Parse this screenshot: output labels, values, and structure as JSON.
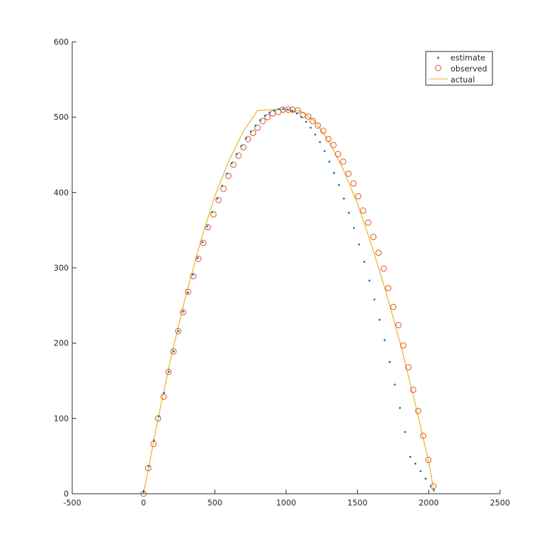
{
  "chart_data": {
    "type": "scatter",
    "title": "",
    "xlabel": "",
    "ylabel": "",
    "xlim": [
      -500,
      2500
    ],
    "ylim": [
      0,
      600
    ],
    "x_ticks": [
      -500,
      0,
      500,
      1000,
      1500,
      2000,
      2500
    ],
    "y_ticks": [
      0,
      100,
      200,
      300,
      400,
      500,
      600
    ],
    "x_tick_labels": [
      "-500",
      "0",
      "500",
      "1000",
      "1500",
      "2000",
      "2500"
    ],
    "y_tick_labels": [
      "0",
      "100",
      "200",
      "300",
      "400",
      "500",
      "600"
    ],
    "grid": false,
    "legend_position": "top-right",
    "colors": {
      "estimate": "#0072bd",
      "observed": "#d95319",
      "actual": "#edb120"
    },
    "series": [
      {
        "name": "estimate",
        "kind": "marker-dot",
        "x": [
          0,
          37,
          73,
          108,
          143,
          177,
          211,
          245,
          278,
          312,
          346,
          380,
          414,
          448,
          482,
          517,
          551,
          585,
          619,
          653,
          687,
          720,
          753,
          786,
          819,
          852,
          884,
          916,
          948,
          980,
          1012,
          1044,
          1076,
          1108,
          1140,
          1172,
          1204,
          1237,
          1270,
          1303,
          1336,
          1370,
          1405,
          1440,
          1476,
          1512,
          1548,
          1584,
          1619,
          1655,
          1691,
          1726,
          1762,
          1798,
          1834,
          1870,
          1906,
          1942,
          1978,
          2014,
          2035
        ],
        "y": [
          2,
          37,
          71,
          103,
          134,
          162,
          189,
          216,
          242,
          267,
          291,
          313,
          334,
          355,
          374,
          392,
          409,
          425,
          439,
          451,
          462,
          472,
          481,
          489,
          496,
          502,
          506,
          509,
          511,
          511,
          510,
          508,
          505,
          500,
          494,
          486,
          477,
          467,
          455,
          441,
          426,
          410,
          392,
          373,
          353,
          331,
          308,
          283,
          258,
          231,
          204,
          175,
          145,
          114,
          82,
          49,
          40,
          30,
          20,
          10,
          5
        ]
      },
      {
        "name": "observed",
        "kind": "marker-circle",
        "x": [
          0,
          33,
          70,
          102,
          141,
          175,
          210,
          243,
          277,
          312,
          349,
          385,
          419,
          452,
          490,
          526,
          561,
          595,
          630,
          666,
          700,
          733,
          768,
          800,
          836,
          870,
          906,
          945,
          978,
          1015,
          1045,
          1082,
          1118,
          1155,
          1187,
          1222,
          1261,
          1296,
          1332,
          1364,
          1400,
          1437,
          1472,
          1505,
          1540,
          1576,
          1612,
          1648,
          1684,
          1716,
          1752,
          1788,
          1822,
          1857,
          1891,
          1926,
          1961,
          1998,
          2033
        ],
        "y": [
          0,
          34,
          66,
          100,
          129,
          162,
          189,
          216,
          241,
          268,
          289,
          312,
          333,
          354,
          371,
          390,
          405,
          422,
          437,
          449,
          460,
          471,
          479,
          486,
          495,
          500,
          505,
          507,
          510,
          510,
          510,
          509,
          503,
          501,
          495,
          489,
          482,
          471,
          463,
          451,
          441,
          425,
          412,
          395,
          376,
          360,
          341,
          320,
          299,
          273,
          248,
          224,
          197,
          168,
          138,
          110,
          77,
          45,
          10
        ]
      },
      {
        "name": "actual",
        "kind": "line",
        "x": [
          0,
          100,
          200,
          300,
          400,
          500,
          600,
          700,
          800,
          900,
          1000,
          1100,
          1200,
          1300,
          1400,
          1500,
          1600,
          1700,
          1800,
          1900,
          2000,
          2040
        ],
        "y": [
          0,
          98,
          187,
          266,
          335,
          395,
          443,
          481,
          509,
          510,
          510,
          508,
          495,
          468,
          431,
          385,
          330,
          268,
          200,
          124,
          42,
          0
        ]
      }
    ]
  }
}
